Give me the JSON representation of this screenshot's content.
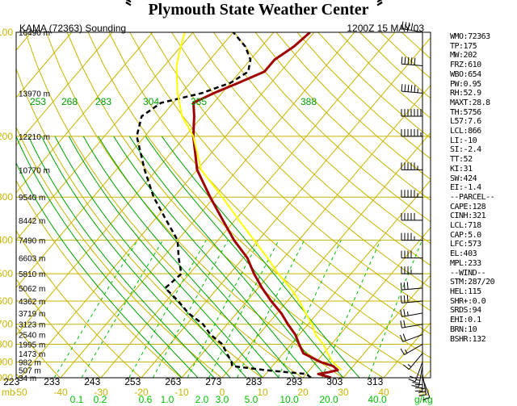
{
  "header": {
    "title": "Plymouth State Weather Center",
    "logo_left": "〝",
    "logo_right": "〞"
  },
  "chart_data": {
    "type": "line",
    "subtitle_left": "KAMA (72363) Sounding",
    "subtitle_right": "1200Z 15 MAY 03",
    "diagram": "skew-T log-P",
    "pressure_ticks_mb": [
      100,
      200,
      300,
      400,
      500,
      600,
      700,
      800,
      900,
      1000
    ],
    "pressure_axis_label": "mb",
    "height_labels": [
      {
        "p": 100,
        "text": "16490 m"
      },
      {
        "p": 150,
        "text": "13970 m"
      },
      {
        "p": 200,
        "text": "12210 m"
      },
      {
        "p": 250,
        "text": "10770 m"
      },
      {
        "p": 300,
        "text": "9540 m"
      },
      {
        "p": 350,
        "text": "8442 m"
      },
      {
        "p": 400,
        "text": "7490 m"
      },
      {
        "p": 450,
        "text": "6603 m"
      },
      {
        "p": 500,
        "text": "5810 m"
      },
      {
        "p": 550,
        "text": "5062 m"
      },
      {
        "p": 600,
        "text": "4362 m"
      },
      {
        "p": 650,
        "text": "3719 m"
      },
      {
        "p": 700,
        "text": "3123 m"
      },
      {
        "p": 750,
        "text": "2540 m"
      },
      {
        "p": 800,
        "text": "1995 m"
      },
      {
        "p": 850,
        "text": "1473 m"
      },
      {
        "p": 900,
        "text": "982 m"
      },
      {
        "p": 950,
        "text": "507 m"
      },
      {
        "p": 1000,
        "text": "34 m"
      }
    ],
    "temperature_ticks_c": [
      -50,
      -40,
      -30,
      -20,
      -10,
      0,
      10,
      20,
      30,
      40,
      50
    ],
    "theta_ticks_bottom_k": [
      223,
      233,
      243,
      253,
      263,
      273,
      283,
      293,
      303,
      313
    ],
    "theta_e_labels_k": [
      253,
      268,
      283,
      304,
      335,
      388
    ],
    "mixing_ratio_ticks": [
      "0.1",
      "0.2",
      "0.6",
      "1.0",
      "2.0",
      "3.0",
      "5.0",
      "10.0",
      "20.0",
      "40.0"
    ],
    "mixing_ratio_unit": "g/kg",
    "series": [
      {
        "key": "temperature",
        "color": "#a00000",
        "points": [
          [
            1000,
            27
          ],
          [
            975,
            23
          ],
          [
            965,
            25
          ],
          [
            950,
            27
          ],
          [
            925,
            25
          ],
          [
            900,
            21
          ],
          [
            850,
            15
          ],
          [
            800,
            12
          ],
          [
            750,
            9
          ],
          [
            700,
            5
          ],
          [
            650,
            1
          ],
          [
            600,
            -4
          ],
          [
            550,
            -9
          ],
          [
            500,
            -14
          ],
          [
            450,
            -19
          ],
          [
            400,
            -26
          ],
          [
            350,
            -33
          ],
          [
            300,
            -41
          ],
          [
            250,
            -50
          ],
          [
            200,
            -58
          ],
          [
            175,
            -62
          ],
          [
            160,
            -65
          ],
          [
            150,
            -62
          ],
          [
            140,
            -58
          ],
          [
            130,
            -54
          ],
          [
            120,
            -54
          ],
          [
            110,
            -52
          ],
          [
            100,
            -51
          ]
        ]
      },
      {
        "key": "dewpoint",
        "color": "#000000",
        "points": [
          [
            1000,
            22
          ],
          [
            975,
            20
          ],
          [
            950,
            9
          ],
          [
            925,
            0
          ],
          [
            900,
            -1
          ],
          [
            850,
            -4
          ],
          [
            800,
            -7
          ],
          [
            750,
            -12
          ],
          [
            700,
            -16
          ],
          [
            650,
            -22
          ],
          [
            600,
            -27
          ],
          [
            550,
            -33
          ],
          [
            500,
            -32
          ],
          [
            450,
            -36
          ],
          [
            400,
            -40
          ],
          [
            350,
            -47
          ],
          [
            300,
            -55
          ],
          [
            250,
            -63
          ],
          [
            200,
            -72
          ],
          [
            175,
            -75
          ],
          [
            160,
            -73
          ],
          [
            150,
            -65
          ],
          [
            140,
            -60
          ],
          [
            130,
            -58
          ],
          [
            120,
            -60
          ],
          [
            110,
            -64
          ],
          [
            100,
            -70
          ]
        ]
      },
      {
        "key": "parcel",
        "color": "#ffff00",
        "points": [
          [
            950,
            28
          ],
          [
            900,
            24
          ],
          [
            850,
            21
          ],
          [
            800,
            18
          ],
          [
            750,
            14
          ],
          [
            700,
            11
          ],
          [
            650,
            7
          ],
          [
            600,
            3
          ],
          [
            550,
            -2
          ],
          [
            500,
            -8
          ],
          [
            450,
            -14
          ],
          [
            400,
            -21
          ],
          [
            350,
            -29
          ],
          [
            300,
            -38
          ],
          [
            250,
            -49
          ],
          [
            200,
            -58
          ],
          [
            175,
            -65
          ],
          [
            150,
            -71
          ],
          [
            125,
            -77
          ],
          [
            110,
            -80
          ],
          [
            100,
            -82
          ]
        ]
      }
    ],
    "wind_barbs": [
      {
        "p": 1000,
        "dir": 160,
        "kt": 10
      },
      {
        "p": 975,
        "dir": 170,
        "kt": 25
      },
      {
        "p": 950,
        "dir": 180,
        "kt": 30
      },
      {
        "p": 925,
        "dir": 190,
        "kt": 25
      },
      {
        "p": 900,
        "dir": 200,
        "kt": 20
      },
      {
        "p": 850,
        "dir": 220,
        "kt": 15
      },
      {
        "p": 800,
        "dir": 240,
        "kt": 15
      },
      {
        "p": 750,
        "dir": 250,
        "kt": 20
      },
      {
        "p": 700,
        "dir": 260,
        "kt": 20
      },
      {
        "p": 650,
        "dir": 260,
        "kt": 25
      },
      {
        "p": 600,
        "dir": 265,
        "kt": 30
      },
      {
        "p": 550,
        "dir": 265,
        "kt": 30
      },
      {
        "p": 500,
        "dir": 270,
        "kt": 35
      },
      {
        "p": 450,
        "dir": 270,
        "kt": 40
      },
      {
        "p": 400,
        "dir": 270,
        "kt": 45
      },
      {
        "p": 350,
        "dir": 270,
        "kt": 50
      },
      {
        "p": 300,
        "dir": 270,
        "kt": 55
      },
      {
        "p": 250,
        "dir": 270,
        "kt": 55
      },
      {
        "p": 200,
        "dir": 270,
        "kt": 65
      },
      {
        "p": 175,
        "dir": 270,
        "kt": 70
      },
      {
        "p": 150,
        "dir": 275,
        "kt": 55
      },
      {
        "p": 125,
        "dir": 275,
        "kt": 50
      },
      {
        "p": 100,
        "dir": 280,
        "kt": 40
      }
    ]
  },
  "stats_panel": [
    "WMO:72363",
    "TP:175",
    "MW:202",
    "FRZ:610",
    "WBO:654",
    "PW:0.95",
    "RH:52.9",
    "MAXT:28.8",
    "TH:5756",
    "L57:7.6",
    "LCL:866",
    "LI:-10",
    "SI:-2.4",
    "TT:52",
    "KI:31",
    "SW:424",
    "EI:-1.4",
    "--PARCEL--",
    "CAPE:128",
    "CINH:321",
    "LCL:718",
    "CAP:5.0",
    "LFC:573",
    "EL:403",
    "MPL:233",
    "--WIND--",
    "STM:287/20",
    "HEL:115",
    "SHR+:0.0",
    "SRDS:94",
    "EHI:0.1",
    "BRN:10",
    "BSHR:132"
  ],
  "colors": {
    "isotherm": "#c8b400",
    "theta": "#c8b400",
    "theta_e": "#00a000",
    "mixing_ratio": "#00c000",
    "axis_text": "#c8b400",
    "theta_e_text": "#00a000"
  }
}
